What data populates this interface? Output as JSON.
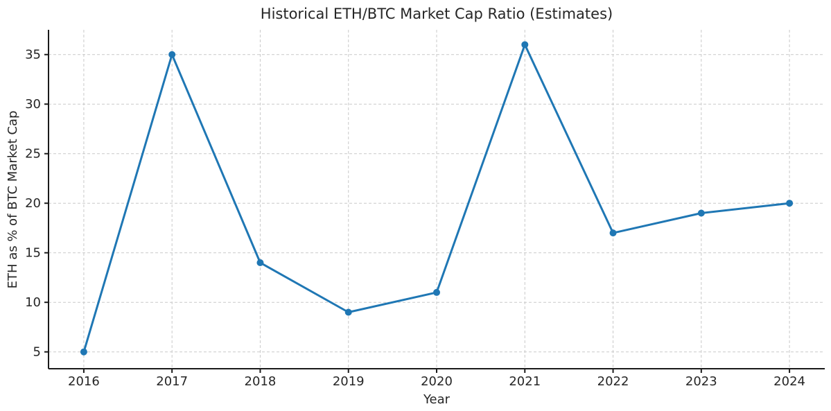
{
  "chart_data": {
    "type": "line",
    "title": "Historical ETH/BTC Market Cap Ratio (Estimates)",
    "xlabel": "Year",
    "ylabel": "ETH as % of BTC Market Cap",
    "x": [
      2016,
      2017,
      2018,
      2019,
      2020,
      2021,
      2022,
      2023,
      2024
    ],
    "values": [
      5,
      35,
      14,
      9,
      11,
      36,
      17,
      19,
      20
    ],
    "xticks": [
      "2016",
      "2017",
      "2018",
      "2019",
      "2020",
      "2021",
      "2022",
      "2023",
      "2024"
    ],
    "yticks": [
      5,
      10,
      15,
      20,
      25,
      30,
      35
    ],
    "xlim": [
      2015.6,
      2024.4
    ],
    "ylim": [
      3.3,
      37.5
    ],
    "grid": true,
    "legend": false,
    "marker": "circle",
    "line_color": "#1f77b4"
  }
}
